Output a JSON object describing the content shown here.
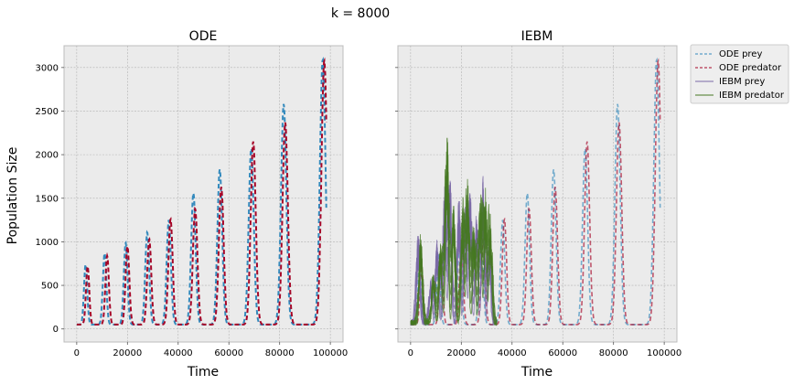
{
  "figure": {
    "suptitle": "k = 8000",
    "ylabel": "Population Size",
    "colors": {
      "axes_bg": "#EBEBEB",
      "ode_prey": "#348ABD",
      "ode_predator": "#A60628",
      "iebm_prey": "#7A68A6",
      "iebm_predator": "#467821"
    }
  },
  "chart_data": [
    {
      "type": "line",
      "title": "ODE",
      "xlabel": "Time",
      "ylabel": "Population Size",
      "xlim": [
        -5000,
        105000
      ],
      "ylim": [
        -150,
        3250
      ],
      "xticks": [
        0,
        20000,
        40000,
        60000,
        80000,
        100000
      ],
      "yticks": [
        0,
        500,
        1000,
        1500,
        2000,
        2500,
        3000
      ],
      "grid": true,
      "series": [
        {
          "name": "ODE prey",
          "style": "dashed",
          "peaks_x": [
            3500,
            11000,
            19300,
            27800,
            36300,
            46000,
            56400,
            68800,
            81600,
            97000
          ],
          "peaks_y": [
            740,
            870,
            990,
            1110,
            1250,
            1560,
            1830,
            2070,
            2580,
            3090
          ]
        },
        {
          "name": "ODE predator",
          "style": "dashed",
          "peaks_x": [
            4300,
            12000,
            20000,
            28600,
            37000,
            46700,
            57000,
            69600,
            82200,
            97600
          ],
          "peaks_y": [
            720,
            840,
            950,
            1030,
            1260,
            1380,
            1630,
            2150,
            2370,
            3080
          ]
        }
      ]
    },
    {
      "type": "line",
      "title": "IEBM",
      "xlabel": "Time",
      "xlim": [
        -5000,
        105000
      ],
      "ylim": [
        -150,
        3250
      ],
      "xticks": [
        0,
        20000,
        40000,
        60000,
        80000,
        100000
      ],
      "yticks": [
        0,
        500,
        1000,
        1500,
        2000,
        2500,
        3000
      ],
      "grid": true,
      "legend_position": "outside-right-top",
      "series": [
        {
          "name": "ODE prey",
          "style": "dashed",
          "peaks_x": [
            3500,
            11000,
            19300,
            27800,
            36300,
            46000,
            56400,
            68800,
            81600,
            97000
          ],
          "peaks_y": [
            740,
            870,
            990,
            1110,
            1250,
            1560,
            1830,
            2070,
            2580,
            3090
          ]
        },
        {
          "name": "ODE predator",
          "style": "dashed",
          "peaks_x": [
            4300,
            12000,
            20000,
            28600,
            37000,
            46700,
            57000,
            69600,
            82200,
            97600
          ],
          "peaks_y": [
            720,
            840,
            950,
            1030,
            1260,
            1380,
            1630,
            2150,
            2370,
            3080
          ]
        },
        {
          "name": "IEBM prey",
          "style": "solid",
          "peaks_x": [
            3000,
            8000,
            10500,
            13500,
            15500,
            19000,
            21500,
            23500,
            26000,
            28500,
            31000
          ],
          "peaks_y": [
            1120,
            550,
            1000,
            1540,
            1680,
            1500,
            1380,
            1550,
            1250,
            1710,
            1050
          ]
        },
        {
          "name": "IEBM predator",
          "style": "solid",
          "peaks_x": [
            4000,
            9000,
            11800,
            14300,
            17000,
            20500,
            22500,
            25000,
            27500,
            29500,
            31500
          ],
          "peaks_y": [
            1050,
            620,
            980,
            2280,
            1400,
            1320,
            1680,
            1180,
            1480,
            1420,
            1200
          ]
        }
      ]
    }
  ],
  "legend": {
    "items": [
      {
        "label": "ODE prey"
      },
      {
        "label": "ODE predator"
      },
      {
        "label": "IEBM prey"
      },
      {
        "label": "IEBM predator"
      }
    ]
  }
}
